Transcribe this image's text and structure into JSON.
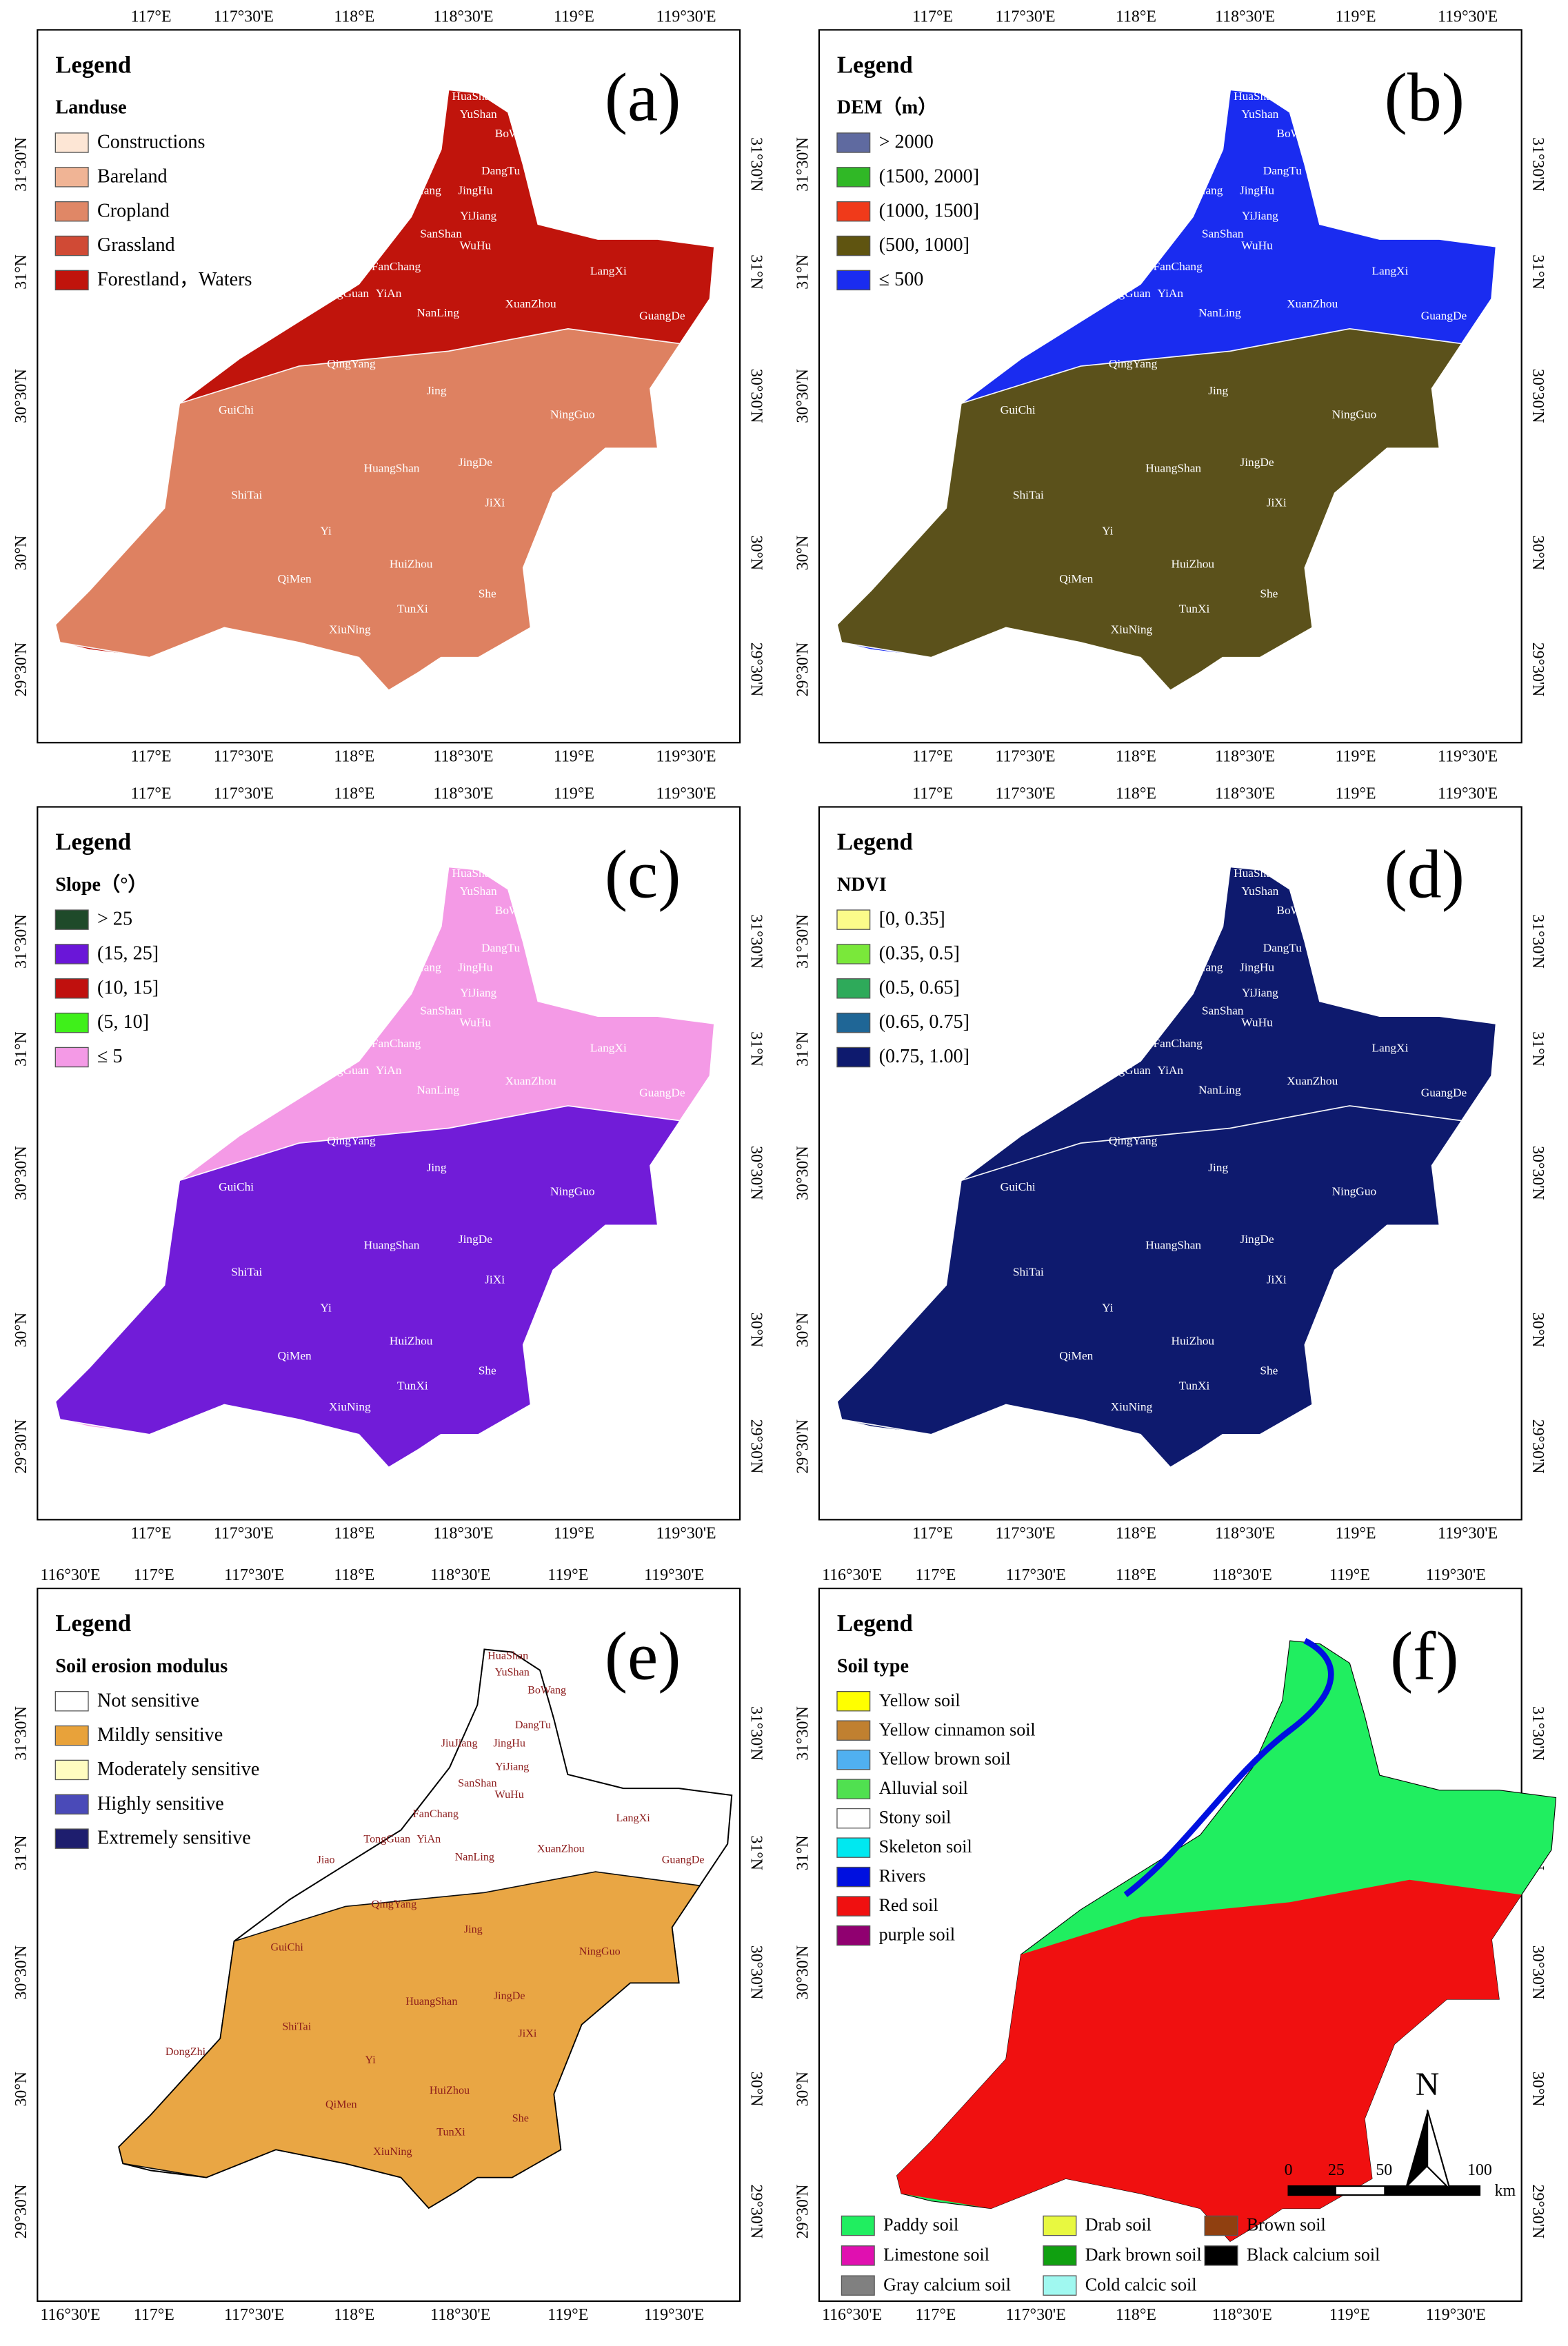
{
  "axes": {
    "lon": [
      "117°E",
      "117°30'E",
      "118°E",
      "118°30'E",
      "119°E",
      "119°30'E"
    ],
    "lon_wide": [
      "116°30'E",
      "117°E",
      "117°30'E",
      "118°E",
      "118°30'E",
      "119°E",
      "119°30'E"
    ],
    "lat": [
      "31°30'N",
      "31°N",
      "30°30'N",
      "30°N",
      "29°30'N"
    ]
  },
  "places": [
    "HuaShan",
    "YuShan",
    "BoWang",
    "DangTu",
    "JiuJiang",
    "JingHu",
    "SanShan",
    "YiJiang",
    "WuHu",
    "FanChang",
    "LangXi",
    "TongGuan",
    "YiAn",
    "Jiao",
    "NanLing",
    "XuanZhou",
    "GuangDe",
    "QingYang",
    "Jing",
    "GuiChi",
    "NingGuo",
    "HuangShan",
    "JingDe",
    "ShiTai",
    "JiXi",
    "DongZhi",
    "Yi",
    "HuiZhou",
    "QiMen",
    "She",
    "TunXi",
    "XiuNing"
  ],
  "panels": [
    {
      "label": "(a)",
      "legend_heading": "Legend",
      "legend_title": "Landuse",
      "items": [
        {
          "label": "Constructions",
          "color": "#fde6d5"
        },
        {
          "label": "Bareland",
          "color": "#f0b495"
        },
        {
          "label": "Cropland",
          "color": "#e08766"
        },
        {
          "label": "Grassland",
          "color": "#d04a35"
        },
        {
          "label": "Forestland，Waters",
          "color": "#c0140c"
        }
      ]
    },
    {
      "label": "(b)",
      "legend_heading": "Legend",
      "legend_title": "DEM（m）",
      "items": [
        {
          "label": "> 2000",
          "color": "#5f6aa0"
        },
        {
          "label": "(1500, 2000]",
          "color": "#30b826"
        },
        {
          "label": "(1000, 1500]",
          "color": "#f03a1a"
        },
        {
          "label": "(500, 1000]",
          "color": "#5f5410"
        },
        {
          "label": "≤ 500",
          "color": "#1a2cf0"
        }
      ]
    },
    {
      "label": "(c)",
      "legend_heading": "Legend",
      "legend_title": "Slope（°）",
      "items": [
        {
          "label": "> 25",
          "color": "#1f4a2a"
        },
        {
          "label": "(15, 25]",
          "color": "#6a16d8"
        },
        {
          "label": "(10, 15]",
          "color": "#c0100e"
        },
        {
          "label": "(5, 10]",
          "color": "#3ff01a"
        },
        {
          "label": "≤ 5",
          "color": "#f49ae6"
        }
      ]
    },
    {
      "label": "(d)",
      "legend_heading": "Legend",
      "legend_title": "NDVI",
      "items": [
        {
          "label": "[0, 0.35]",
          "color": "#fbfb8a"
        },
        {
          "label": "(0.35, 0.5]",
          "color": "#7ae83a"
        },
        {
          "label": "(0.5, 0.65]",
          "color": "#2eaa5a"
        },
        {
          "label": "(0.65, 0.75]",
          "color": "#1f6696"
        },
        {
          "label": "(0.75, 1.00]",
          "color": "#0e1a6e"
        }
      ]
    },
    {
      "label": "(e)",
      "legend_heading": "Legend",
      "legend_title": "Soil erosion modulus",
      "items": [
        {
          "label": "Not sensitive",
          "color": "#ffffff"
        },
        {
          "label": "Mildly sensitive",
          "color": "#e8a23a"
        },
        {
          "label": "Moderately sensitive",
          "color": "#fffcc0"
        },
        {
          "label": "Highly sensitive",
          "color": "#4a4ab8"
        },
        {
          "label": "Extremely sensitive",
          "color": "#1e1e6e"
        }
      ]
    },
    {
      "label": "(f)",
      "legend_heading": "Legend",
      "legend_title": "Soil type",
      "items": [
        {
          "label": "Yellow soil",
          "color": "#ffff00"
        },
        {
          "label": "Yellow cinnamon soil",
          "color": "#c08030"
        },
        {
          "label": "Yellow brown soil",
          "color": "#50b0f0"
        },
        {
          "label": "Alluvial soil",
          "color": "#50e050"
        },
        {
          "label": "Stony soil",
          "color": "#ffffff"
        },
        {
          "label": "Skeleton soil",
          "color": "#00e8f0"
        },
        {
          "label": "Rivers",
          "color": "#0010e0"
        },
        {
          "label": "Red soil",
          "color": "#f01010"
        },
        {
          "label": "purple soil",
          "color": "#900070"
        }
      ],
      "bottom_items": [
        {
          "label": "Paddy soil",
          "color": "#20ee60"
        },
        {
          "label": "Limestone soil",
          "color": "#e010b0"
        },
        {
          "label": "Gray calcium soil",
          "color": "#808080"
        },
        {
          "label": "Drab soil",
          "color": "#e8f840"
        },
        {
          "label": "Dark brown soil",
          "color": "#10a010"
        },
        {
          "label": "Cold calcic soil",
          "color": "#a0f8f0"
        },
        {
          "label": "Brown soil",
          "color": "#904010"
        },
        {
          "label": "Black calcium soil",
          "color": "#000000"
        }
      ],
      "scale_labels": [
        0,
        25,
        50,
        100
      ],
      "scale_unit": "km",
      "north": "N"
    }
  ]
}
